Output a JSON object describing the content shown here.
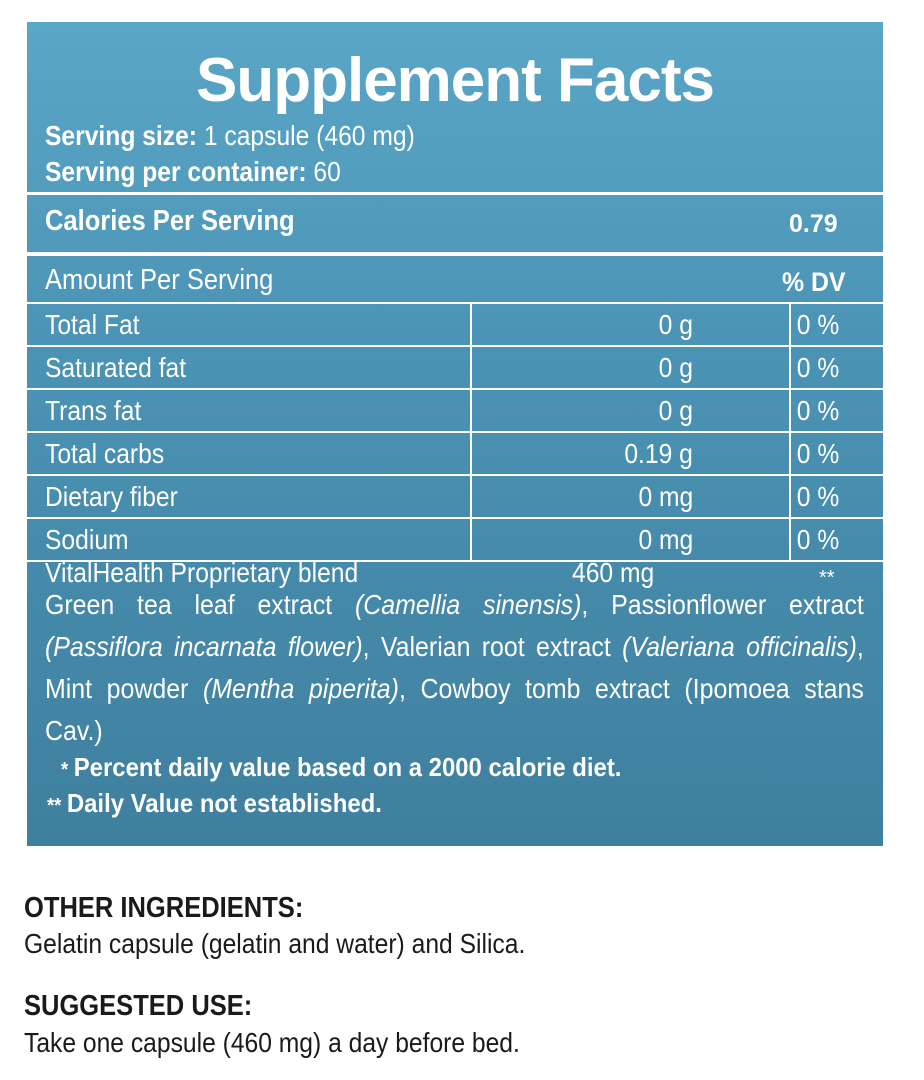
{
  "panel": {
    "title": "Supplement Facts",
    "serving_size_label": "Serving size:",
    "serving_size_value": " 1 capsule (460 mg)",
    "servings_label": "Serving per container:",
    "servings_value": " 60",
    "calories_label": "Calories Per Serving",
    "calories_value": "0.79",
    "amount_header": "Amount Per Serving",
    "dv_header": "% DV",
    "rows": [
      {
        "name": "Total Fat",
        "amount": "0 g",
        "dv": "0 %"
      },
      {
        "name": "Saturated fat",
        "amount": "0 g",
        "dv": "0 %"
      },
      {
        "name": "Trans fat",
        "amount": "0 g",
        "dv": "0 %"
      },
      {
        "name": "Total carbs",
        "amount": "0.19 g",
        "dv": "0 %"
      },
      {
        "name": "Dietary fiber",
        "amount": "0 mg",
        "dv": "0 %"
      },
      {
        "name": "Sodium",
        "amount": "0 mg",
        "dv": "0 %"
      }
    ],
    "blend": {
      "name": "VitalHealth Proprietary blend",
      "amount": "460 mg",
      "dv": "**"
    },
    "ingredients": [
      {
        "text": "Green tea leaf extract ",
        "italic": false
      },
      {
        "text": "(Camellia sinensis)",
        "italic": true
      },
      {
        "text": ", Passionflower extract ",
        "italic": false
      },
      {
        "text": "(Passiflora incarnata flower)",
        "italic": true
      },
      {
        "text": ", Valerian root extract ",
        "italic": false
      },
      {
        "text": "(Valeriana officinalis)",
        "italic": true
      },
      {
        "text": ", Mint powder ",
        "italic": false
      },
      {
        "text": "(Mentha piperita)",
        "italic": true
      },
      {
        "text": ", Cowboy tomb extract (Ipomoea stans Cav.)",
        "italic": false
      }
    ],
    "footnote1_mark": "*",
    "footnote1": "Percent daily value based on a 2000 calorie diet.",
    "footnote2_mark": "**",
    "footnote2": "Daily Value not established."
  },
  "other_ingredients": {
    "heading": "OTHER INGREDIENTS:",
    "text": "Gelatin capsule (gelatin and water) and Silica."
  },
  "suggested_use": {
    "heading": "SUGGESTED USE:",
    "text": "Take one capsule (460 mg) a day before bed."
  },
  "colors": {
    "panel_top": "#5aa6c7",
    "panel_bottom": "#3f7f9e",
    "text_dark": "#1a1a1a"
  }
}
